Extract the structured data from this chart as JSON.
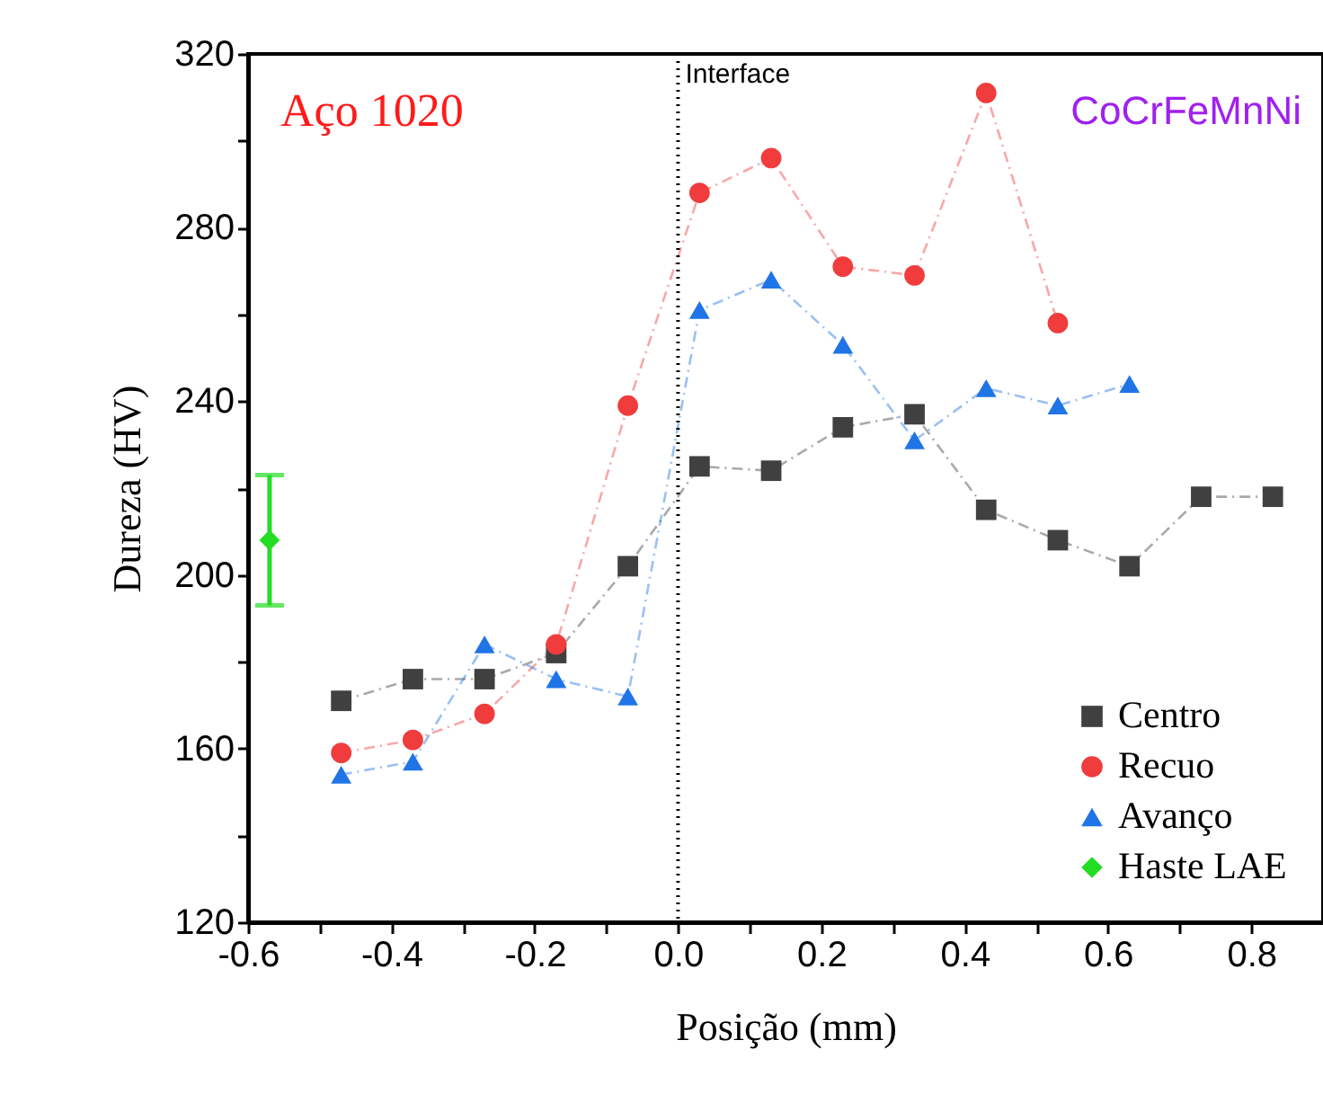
{
  "chart_data": {
    "type": "line",
    "xlabel": "Posição (mm)",
    "ylabel": "Dureza (HV)",
    "xlim": [
      -0.6,
      0.9
    ],
    "ylim": [
      120,
      320
    ],
    "xticks": [
      {
        "value": -0.6,
        "label": "-0.6"
      },
      {
        "value": -0.5,
        "label": null
      },
      {
        "value": -0.4,
        "label": "-0.4"
      },
      {
        "value": -0.3,
        "label": null
      },
      {
        "value": -0.2,
        "label": "-0.2"
      },
      {
        "value": -0.1,
        "label": null
      },
      {
        "value": 0,
        "label": "0.0"
      },
      {
        "value": 0.1,
        "label": null
      },
      {
        "value": 0.2,
        "label": "0.2"
      },
      {
        "value": 0.3,
        "label": null
      },
      {
        "value": 0.4,
        "label": "0.4"
      },
      {
        "value": 0.5,
        "label": null
      },
      {
        "value": 0.6,
        "label": "0.6"
      },
      {
        "value": 0.7,
        "label": null
      },
      {
        "value": 0.8,
        "label": "0.8"
      }
    ],
    "yticks": [
      120,
      {
        "value": 140,
        "label": null
      },
      160,
      {
        "value": 180,
        "label": null
      },
      200,
      {
        "value": 220,
        "label": null
      },
      240,
      {
        "value": 260,
        "label": null
      },
      280,
      {
        "value": 300,
        "label": null
      },
      320
    ],
    "series": [
      {
        "name": "Centro",
        "color": "#404040",
        "marker": "square",
        "x": [
          -0.47,
          -0.37,
          -0.27,
          -0.17,
          -0.07,
          0.03,
          0.13,
          0.23,
          0.33,
          0.43,
          0.53,
          0.63,
          0.73,
          0.83
        ],
        "values": [
          171,
          176,
          176,
          182,
          202,
          225,
          224,
          234,
          237,
          215,
          208,
          202,
          218,
          218
        ]
      },
      {
        "name": "Recuo",
        "color": "#f03c3c",
        "marker": "circle",
        "x": [
          -0.47,
          -0.37,
          -0.27,
          -0.17,
          -0.07,
          0.03,
          0.13,
          0.23,
          0.33,
          0.43,
          0.53
        ],
        "values": [
          159,
          162,
          168,
          184,
          239,
          288,
          296,
          271,
          269,
          311,
          258
        ]
      },
      {
        "name": "Avanço",
        "color": "#1f74e6",
        "marker": "triangle",
        "x": [
          -0.47,
          -0.37,
          -0.27,
          -0.17,
          -0.07,
          0.03,
          0.13,
          0.23,
          0.33,
          0.43,
          0.53,
          0.63
        ],
        "values": [
          154,
          157,
          184,
          176,
          172,
          261,
          268,
          253,
          231,
          243,
          239,
          244
        ]
      },
      {
        "name": "Haste LAE",
        "color": "#22dd22",
        "marker": "diamond",
        "x": [
          -0.57
        ],
        "values": [
          208
        ],
        "errors": [
          [
            193,
            223
          ]
        ]
      }
    ],
    "ref_lines": [
      {
        "axis": "x",
        "value": 0,
        "label": "Interface",
        "color": "#000000",
        "line_style": "dotted"
      }
    ],
    "annotations": [
      "Aço 1020",
      "CoCrFeMnNi"
    ],
    "line_style": "dashed",
    "legend": "bottom right",
    "grid": false
  }
}
